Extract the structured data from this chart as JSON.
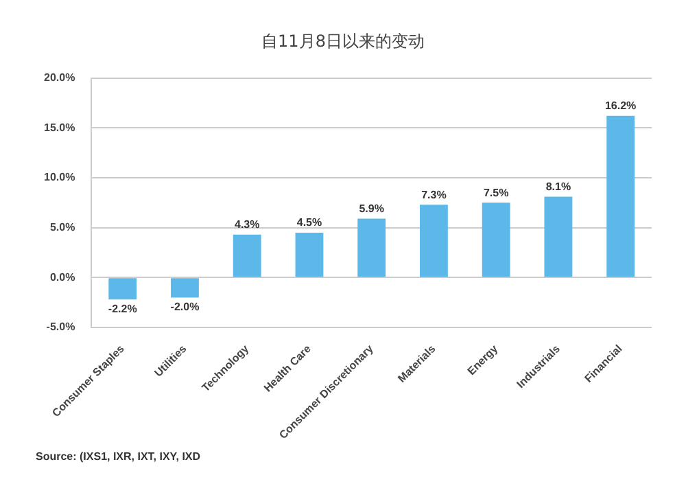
{
  "chart_data": {
    "type": "bar",
    "title": "自11月8日以来的变动",
    "categories": [
      "Consumer Staples",
      "Utilities",
      "Technology",
      "Health Care",
      "Consumer Discretionary",
      "Materials",
      "Energy",
      "Industrials",
      "Financial"
    ],
    "values": [
      -2.2,
      -2.0,
      4.3,
      4.5,
      5.9,
      7.3,
      7.5,
      8.1,
      16.2
    ],
    "value_labels": [
      "-2.2%",
      "-2.0%",
      "4.3%",
      "4.5%",
      "5.9%",
      "7.3%",
      "7.5%",
      "8.1%",
      "16.2%"
    ],
    "color": "#5bb8e8",
    "ylim": [
      -5,
      20
    ],
    "yticks": [
      {
        "value": -5,
        "label": "-5.0%"
      },
      {
        "value": 0,
        "label": "0.0%"
      },
      {
        "value": 5,
        "label": "5.0%"
      },
      {
        "value": 10,
        "label": "10.0%"
      },
      {
        "value": 15,
        "label": "15.0%"
      },
      {
        "value": 20,
        "label": "20.0%"
      }
    ],
    "grid": "y",
    "annotations": [
      "Source: (IXS1, IXR, IXT, IXY, IXD"
    ]
  }
}
